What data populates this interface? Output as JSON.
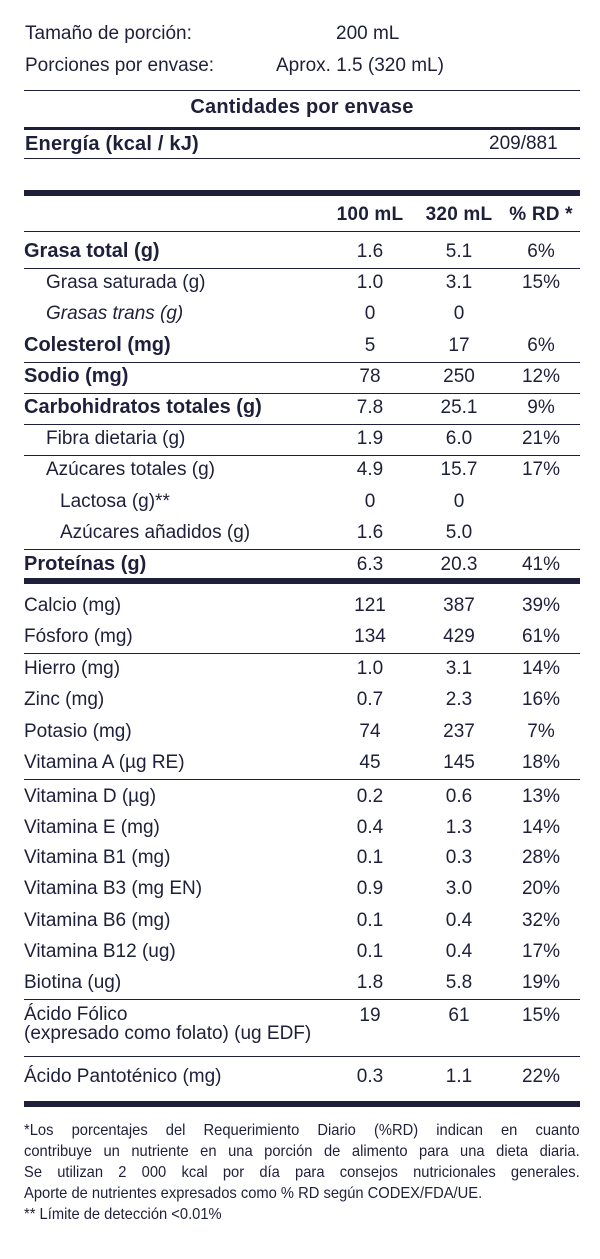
{
  "serving": {
    "size_label": "Tamaño de porción:",
    "size_value": "200 mL",
    "per_container_label": "Porciones por envase:",
    "per_container_value": "Aprox. 1.5 (320 mL)"
  },
  "section_title": "Cantidades por envase",
  "energy": {
    "label": "Energía (kcal / kJ)",
    "value": "209/881"
  },
  "columns": {
    "c1": "100 mL",
    "c2": "320 mL",
    "c3": "% RD *"
  },
  "macros": [
    {
      "label": "Grasa total (g)",
      "v1": "1.6",
      "v2": "5.1",
      "v3": "6%"
    },
    {
      "label": "Grasa saturada (g)",
      "v1": "1.0",
      "v2": "3.1",
      "v3": "15%"
    },
    {
      "label": "Grasas trans (g)",
      "v1": "0",
      "v2": "0",
      "v3": ""
    },
    {
      "label": "Colesterol (mg)",
      "v1": "5",
      "v2": "17",
      "v3": "6%"
    },
    {
      "label": "Sodio (mg)",
      "v1": "78",
      "v2": "250",
      "v3": "12%"
    },
    {
      "label": "Carbohidratos totales (g)",
      "v1": "7.8",
      "v2": "25.1",
      "v3": "9%"
    },
    {
      "label": "Fibra dietaria (g)",
      "v1": "1.9",
      "v2": "6.0",
      "v3": "21%"
    },
    {
      "label": "Azúcares totales (g)",
      "v1": "4.9",
      "v2": "15.7",
      "v3": "17%"
    },
    {
      "label": "Lactosa (g)**",
      "v1": "0",
      "v2": "0",
      "v3": ""
    },
    {
      "label": "Azúcares añadidos (g)",
      "v1": "1.6",
      "v2": "5.0",
      "v3": ""
    },
    {
      "label": "Proteínas (g)",
      "v1": "6.3",
      "v2": "20.3",
      "v3": "41%"
    }
  ],
  "micros": [
    {
      "label": "Calcio (mg)",
      "v1": "121",
      "v2": "387",
      "v3": "39%"
    },
    {
      "label": "Fósforo (mg)",
      "v1": "134",
      "v2": "429",
      "v3": "61%"
    },
    {
      "label": "Hierro (mg)",
      "v1": "1.0",
      "v2": "3.1",
      "v3": "14%"
    },
    {
      "label": "Zinc (mg)",
      "v1": "0.7",
      "v2": "2.3",
      "v3": "16%"
    },
    {
      "label": "Potasio (mg)",
      "v1": "74",
      "v2": "237",
      "v3": "7%"
    },
    {
      "label": "Vitamina A (µg RE)",
      "v1": "45",
      "v2": "145",
      "v3": "18%"
    },
    {
      "label": "Vitamina D (µg)",
      "v1": "0.2",
      "v2": "0.6",
      "v3": "13%"
    },
    {
      "label": "Vitamina E (mg)",
      "v1": "0.4",
      "v2": "1.3",
      "v3": "14%"
    },
    {
      "label": "Vitamina B1 (mg)",
      "v1": "0.1",
      "v2": "0.3",
      "v3": "28%"
    },
    {
      "label": "Vitamina B3 (mg EN)",
      "v1": "0.9",
      "v2": "3.0",
      "v3": "20%"
    },
    {
      "label": "Vitamina B6 (mg)",
      "v1": "0.1",
      "v2": "0.4",
      "v3": "32%"
    },
    {
      "label": "Vitamina B12 (ug)",
      "v1": "0.1",
      "v2": "0.4",
      "v3": "17%"
    },
    {
      "label": "Biotina (ug)",
      "v1": "1.8",
      "v2": "5.8",
      "v3": "19%"
    }
  ],
  "folic": {
    "label_line1": "Ácido Fólico",
    "label_line2": "(expresado como folato) (ug EDF)",
    "v1": "19",
    "v2": "61",
    "v3": "15%"
  },
  "pantothenic": {
    "label": "Ácido Pantoténico (mg)",
    "v1": "0.3",
    "v2": "1.1",
    "v3": "22%"
  },
  "footnote": {
    "line1": "*Los porcentajes del Requerimiento Diario (%RD) indican en cuanto",
    "line2": "contribuye un nutriente en una porción de alimento para una dieta diaria.",
    "line3": "Se utilizan 2 000 kcal por día para consejos nutricionales generales.",
    "line4": "Aporte de nutrientes expresados como % RD según CODEX/FDA/UE.",
    "line5": "** Límite de detección <0.01%"
  }
}
